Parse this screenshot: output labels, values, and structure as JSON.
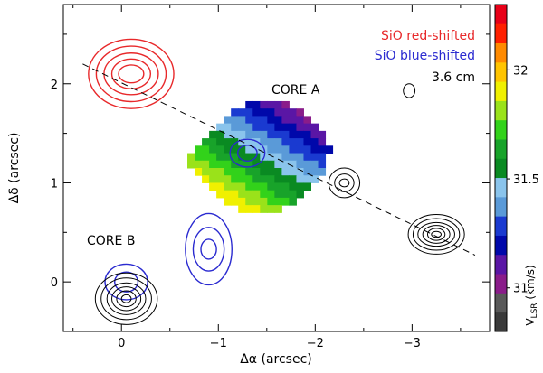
{
  "chart_data": {
    "type": "contour",
    "xlabel": "Δα (arcsec)",
    "ylabel": "Δδ (arcsec)",
    "xlim": [
      0.6,
      -3.8
    ],
    "ylim": [
      -0.5,
      2.8
    ],
    "xticks": [
      {
        "value": 0,
        "label": "0"
      },
      {
        "value": -1,
        "label": "−1"
      },
      {
        "value": -2,
        "label": "−2"
      },
      {
        "value": -3,
        "label": "−3"
      }
    ],
    "yticks": [
      {
        "value": 0,
        "label": "0"
      },
      {
        "value": 1,
        "label": "1"
      },
      {
        "value": 2,
        "label": "2"
      }
    ],
    "legend": [
      {
        "text": "SiO red-shifted",
        "color": "#e8282a"
      },
      {
        "text": "SiO blue-shifted",
        "color": "#2a2ad0"
      },
      {
        "text": "3.6 cm",
        "color": "#000000"
      }
    ],
    "annotations": [
      {
        "text": "CORE A",
        "x": -1.55,
        "y": 1.95
      },
      {
        "text": "CORE B",
        "x": -0.2,
        "y": 0.38
      }
    ],
    "outflow_axis": {
      "from": [
        0.4,
        2.2
      ],
      "to": [
        -3.65,
        0.27
      ]
    },
    "red_contours": {
      "name": "SiO red-shifted",
      "center": [
        -0.1,
        2.1
      ],
      "color": "#e8282a",
      "radii": [
        [
          0.13,
          0.09
        ],
        [
          0.2,
          0.15
        ],
        [
          0.28,
          0.21
        ],
        [
          0.36,
          0.28
        ],
        [
          0.44,
          0.35
        ]
      ]
    },
    "blue_contours": {
      "name": "SiO blue-shifted",
      "color": "#2a2ad0",
      "blobs": [
        {
          "center": [
            -0.9,
            0.33
          ],
          "radii": [
            [
              0.08,
              0.1
            ],
            [
              0.16,
              0.22
            ],
            [
              0.24,
              0.36
            ]
          ]
        },
        {
          "center": [
            -1.3,
            1.3
          ],
          "radii": [
            [
              0.1,
              0.08
            ],
            [
              0.18,
              0.14
            ]
          ]
        },
        {
          "center": [
            -0.05,
            0.0
          ],
          "radii": [
            [
              0.12,
              0.1
            ],
            [
              0.22,
              0.18
            ]
          ]
        }
      ]
    },
    "cm_contours": {
      "name": "3.6 cm",
      "color": "#000000",
      "blobs": [
        {
          "center": [
            -3.25,
            0.48
          ],
          "radii": [
            [
              0.05,
              0.03
            ],
            [
              0.09,
              0.06
            ],
            [
              0.14,
              0.09
            ],
            [
              0.19,
              0.12
            ],
            [
              0.24,
              0.16
            ],
            [
              0.29,
              0.2
            ]
          ]
        },
        {
          "center": [
            -2.3,
            1.0
          ],
          "radii": [
            [
              0.05,
              0.04
            ],
            [
              0.1,
              0.09
            ],
            [
              0.16,
              0.15
            ]
          ]
        },
        {
          "center": [
            -2.97,
            1.93
          ],
          "radii": [
            [
              0.06,
              0.07
            ]
          ]
        },
        {
          "center": [
            -0.05,
            -0.17
          ],
          "radii": [
            [
              0.05,
              0.04
            ],
            [
              0.1,
              0.08
            ],
            [
              0.15,
              0.12
            ],
            [
              0.2,
              0.16
            ],
            [
              0.26,
              0.21
            ],
            [
              0.32,
              0.26
            ]
          ]
        }
      ]
    },
    "colorbar": {
      "label": "V_LSR (km/s)",
      "range": [
        30.8,
        32.3
      ],
      "ticks": [
        {
          "value": 31,
          "label": "31"
        },
        {
          "value": 31.5,
          "label": "31.5"
        },
        {
          "value": 32,
          "label": "32"
        }
      ],
      "colors": [
        "#3a3a3a",
        "#595959",
        "#8a1c8a",
        "#5a16a5",
        "#0008aa",
        "#1a3ad0",
        "#5a9ad8",
        "#8ac4ec",
        "#0a8a22",
        "#18a32a",
        "#32d21a",
        "#9ae21a",
        "#f0f000",
        "#ffc400",
        "#ff8a00",
        "#ff2000",
        "#e80018"
      ]
    },
    "velocity_field": {
      "pixel_size": 0.075,
      "origin": [
        -0.68,
        0.7
      ],
      "rows": [
        "........VVVVVV......",
        "......VVVVVVVVVV....",
        ".....VVVVVVVVVVVV...",
        "....VVVVVVVVVVVVVV..",
        "...VVVVVVVVVVVVVVVV.",
        "..VVVVVVVVVVVVVVVVV.",
        ".VVVVVVVVVVVVVVVVVVV",
        "VVVVVVVVVVVVVVVVVVV.",
        "VVVVVVVVVVVVVVVVVVV.",
        ".VVVVVVVVVVVVVVVVVV.",
        "..VVVVVVVVVVVVVVVV..",
        "...VVVVVVVVVVVVVV...",
        "....VVVVVVVVVVVV....",
        ".....VVVVVVVVVV.....",
        ".......VVVVVV......."
      ]
    }
  }
}
